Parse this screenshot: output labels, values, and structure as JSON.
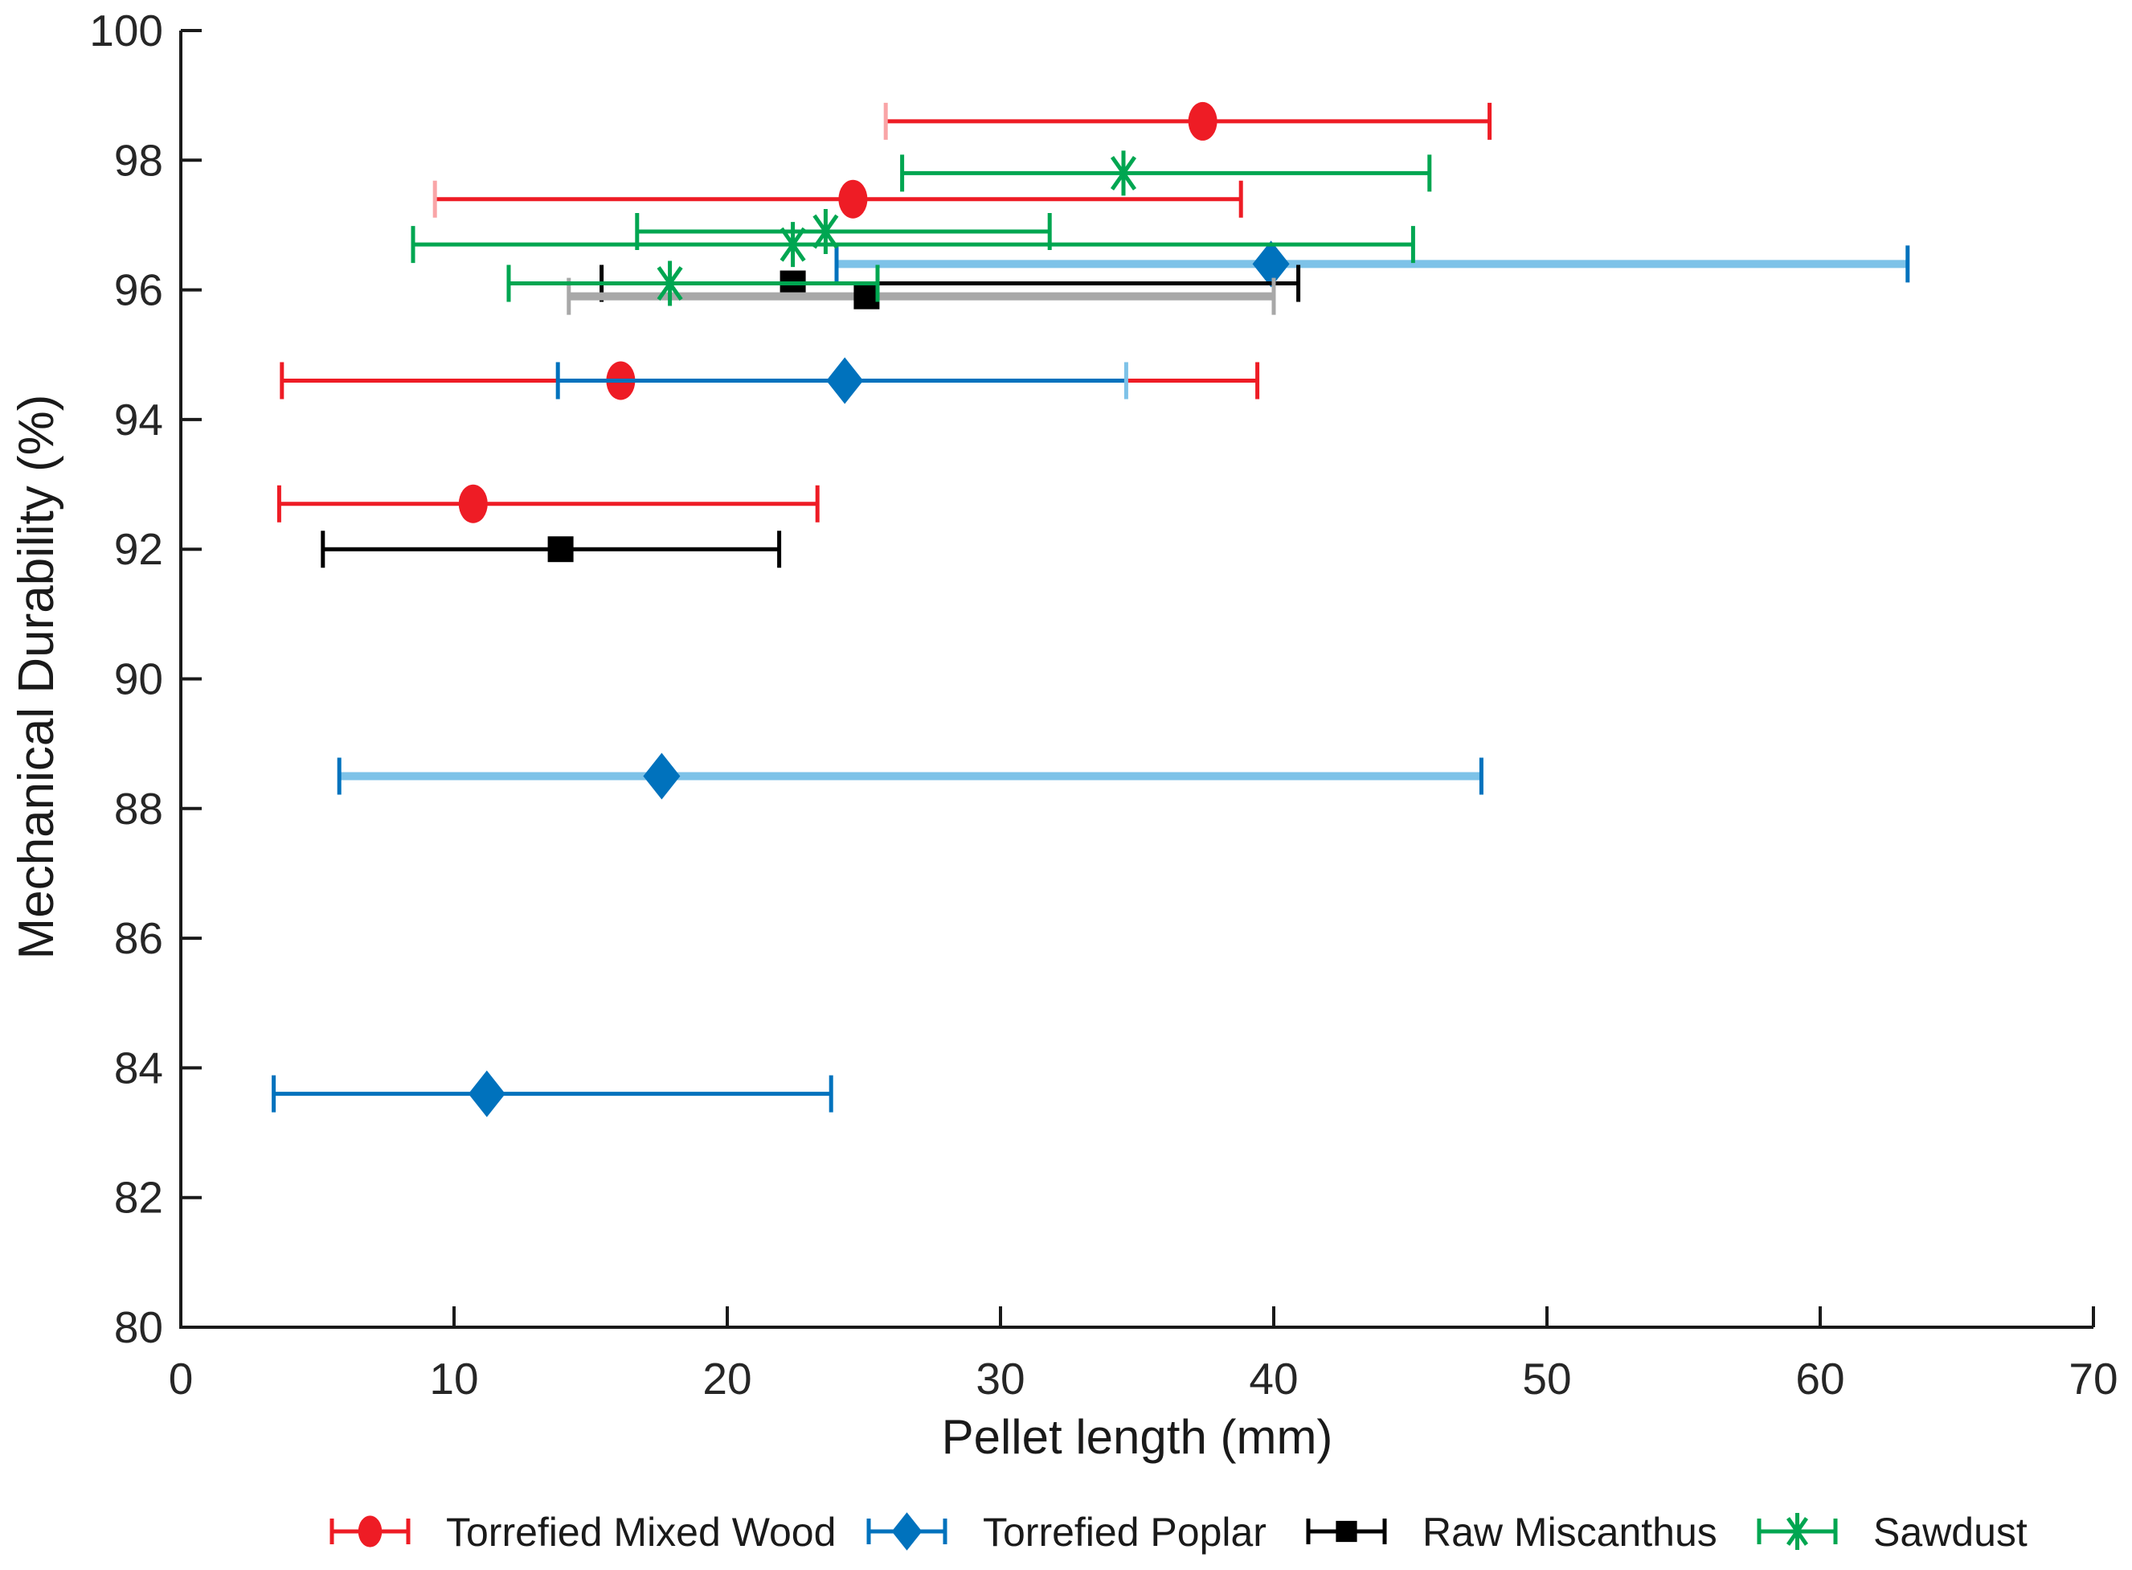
{
  "chart_data": {
    "type": "scatter",
    "title": "",
    "xlabel": "Pellet length (mm)",
    "ylabel": "Mechanical Durability (%)",
    "xlim": [
      0,
      70
    ],
    "ylim": [
      80,
      100
    ],
    "xticks": [
      0,
      10,
      20,
      30,
      40,
      50,
      60,
      70
    ],
    "yticks": [
      80,
      82,
      84,
      86,
      88,
      90,
      92,
      94,
      96,
      98,
      100
    ],
    "grid": false,
    "legend_position": "bottom",
    "error_bars": "horizontal",
    "series": [
      {
        "name": "Torrefied Mixed Wood",
        "marker": "circle",
        "color": "#ee1c25",
        "light_color": "#f9a5a7",
        "points": [
          {
            "x": 37.4,
            "y": 98.6,
            "xlow": 25.8,
            "xhigh": 47.9,
            "low_cap": "light"
          },
          {
            "x": 24.6,
            "y": 97.4,
            "xlow": 9.3,
            "xhigh": 38.8,
            "low_cap": "light"
          },
          {
            "x": 16.1,
            "y": 94.6,
            "xlow": 3.7,
            "xhigh": 39.4
          },
          {
            "x": 10.7,
            "y": 92.7,
            "xlow": 3.6,
            "xhigh": 23.3
          }
        ]
      },
      {
        "name": "Torrefied Poplar",
        "marker": "diamond",
        "color": "#0072bd",
        "light_color": "#7dc2e8",
        "points": [
          {
            "x": 39.9,
            "y": 96.4,
            "xlow": 24.0,
            "xhigh": 63.2,
            "bar": "light"
          },
          {
            "x": 24.3,
            "y": 94.6,
            "xlow": 13.8,
            "xhigh": 34.6,
            "high_cap": "light"
          },
          {
            "x": 17.6,
            "y": 88.5,
            "xlow": 5.8,
            "xhigh": 47.6,
            "bar": "light"
          },
          {
            "x": 11.2,
            "y": 83.6,
            "xlow": 3.4,
            "xhigh": 23.8
          }
        ]
      },
      {
        "name": "Raw Miscanthus",
        "marker": "square",
        "color": "#000000",
        "light_color": "#a8a8a8",
        "points": [
          {
            "x": 22.4,
            "y": 96.1,
            "xlow": 15.4,
            "xhigh": 40.9
          },
          {
            "x": 25.1,
            "y": 95.9,
            "xlow": 14.2,
            "xhigh": 40.0,
            "bar": "light"
          },
          {
            "x": 13.9,
            "y": 92.0,
            "xlow": 5.2,
            "xhigh": 21.9
          }
        ]
      },
      {
        "name": "Sawdust",
        "marker": "asterisk",
        "color": "#00a651",
        "light_color": "#7fd0a7",
        "points": [
          {
            "x": 34.5,
            "y": 97.8,
            "xlow": 26.4,
            "xhigh": 45.7
          },
          {
            "x": 23.6,
            "y": 96.9,
            "xlow": 16.7,
            "xhigh": 31.8
          },
          {
            "x": 22.4,
            "y": 96.7,
            "xlow": 8.5,
            "xhigh": 45.1
          },
          {
            "x": 17.9,
            "y": 96.1,
            "xlow": 12.0,
            "xhigh": 25.5
          }
        ]
      }
    ]
  }
}
